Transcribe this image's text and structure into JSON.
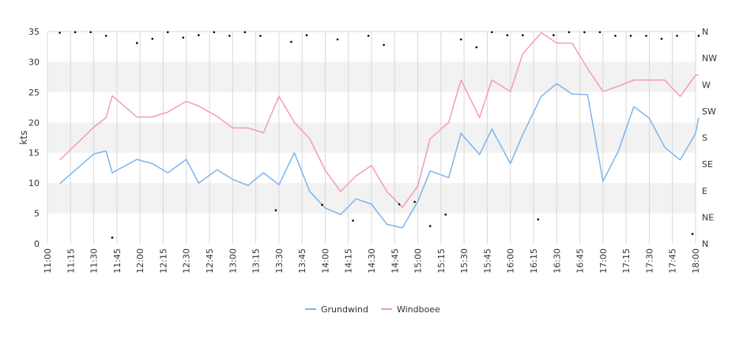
{
  "chart_data": {
    "type": "line",
    "ylabel": "kts",
    "ylim": [
      0,
      35
    ],
    "y_ticks": [
      0,
      5,
      10,
      15,
      20,
      25,
      30,
      35
    ],
    "x_ticks": [
      "11:00",
      "11:15",
      "11:30",
      "11:45",
      "12:00",
      "12:15",
      "12:30",
      "12:45",
      "13:00",
      "13:15",
      "13:30",
      "13:45",
      "14:00",
      "14:15",
      "14:30",
      "14:45",
      "15:00",
      "15:15",
      "15:30",
      "15:45",
      "16:00",
      "16:15",
      "16:30",
      "16:45",
      "17:00",
      "17:15",
      "17:30",
      "17:45",
      "18:00"
    ],
    "xlim_minutes": [
      660,
      1080
    ],
    "direction_axis": [
      "N",
      "NE",
      "E",
      "SE",
      "S",
      "SW",
      "W",
      "NW",
      "N"
    ],
    "grid": true,
    "legend_position": "bottom-center",
    "colors": {
      "grundwind": "#7cb5ec",
      "windboee": "#f49ac1",
      "band": "#f2f2f2",
      "grid": "#d8d8d8",
      "direction_points": "#000000"
    },
    "series": [
      {
        "name": "Grundwind",
        "color": "#7cb5ec",
        "x": [
          "11:08",
          "11:30",
          "11:38",
          "11:42",
          "11:58",
          "12:08",
          "12:18",
          "12:30",
          "12:38",
          "12:50",
          "13:00",
          "13:10",
          "13:20",
          "13:30",
          "13:40",
          "13:50",
          "14:00",
          "14:10",
          "14:20",
          "14:30",
          "14:40",
          "14:50",
          "15:00",
          "15:08",
          "15:20",
          "15:28",
          "15:40",
          "15:48",
          "16:00",
          "16:08",
          "16:20",
          "16:30",
          "16:40",
          "16:50",
          "17:00",
          "17:10",
          "17:20",
          "17:30",
          "17:40",
          "17:50",
          "18:00",
          "18:02"
        ],
        "values": [
          9.9,
          14.8,
          15.3,
          11.7,
          13.9,
          13.2,
          11.7,
          13.9,
          10.0,
          12.2,
          10.6,
          9.6,
          11.7,
          9.7,
          15.0,
          8.6,
          5.9,
          4.8,
          7.4,
          6.5,
          3.2,
          2.6,
          7.0,
          12.0,
          10.9,
          18.2,
          14.7,
          18.9,
          13.2,
          18.0,
          24.3,
          26.4,
          24.7,
          24.6,
          10.3,
          15.3,
          22.6,
          20.7,
          15.9,
          13.8,
          18.2,
          20.8
        ]
      },
      {
        "name": "Windboee",
        "color": "#f49ac1",
        "x": [
          "11:08",
          "11:30",
          "11:38",
          "11:42",
          "11:58",
          "12:08",
          "12:18",
          "12:30",
          "12:38",
          "12:50",
          "13:00",
          "13:10",
          "13:20",
          "13:30",
          "13:40",
          "13:50",
          "14:00",
          "14:10",
          "14:20",
          "14:30",
          "14:40",
          "14:50",
          "15:00",
          "15:08",
          "15:20",
          "15:28",
          "15:40",
          "15:48",
          "16:00",
          "16:08",
          "16:20",
          "16:30",
          "16:40",
          "16:50",
          "17:00",
          "17:10",
          "17:20",
          "17:30",
          "17:40",
          "17:50",
          "18:00",
          "18:02"
        ],
        "values": [
          13.8,
          19.2,
          20.8,
          24.4,
          20.9,
          20.9,
          21.7,
          23.5,
          22.7,
          21.0,
          19.1,
          19.1,
          18.3,
          24.3,
          20.0,
          17.3,
          12.1,
          8.6,
          11.2,
          12.9,
          8.6,
          6.0,
          9.5,
          17.3,
          20.0,
          27.0,
          20.8,
          27.0,
          25.1,
          31.3,
          34.8,
          33.1,
          33.1,
          28.9,
          25.1,
          26.0,
          27.0,
          27.0,
          27.0,
          24.3,
          27.8,
          27.8
        ]
      }
    ],
    "direction_points": {
      "x": [
        "11:08",
        "11:18",
        "11:28",
        "11:38",
        "11:42",
        "11:58",
        "12:08",
        "12:18",
        "12:28",
        "12:38",
        "12:48",
        "12:58",
        "13:08",
        "13:18",
        "13:28",
        "13:38",
        "13:48",
        "13:58",
        "14:08",
        "14:18",
        "14:28",
        "14:38",
        "14:48",
        "14:58",
        "15:08",
        "15:18",
        "15:28",
        "15:38",
        "15:48",
        "15:58",
        "16:08",
        "16:18",
        "16:28",
        "16:38",
        "16:48",
        "16:58",
        "17:08",
        "17:18",
        "17:28",
        "17:38",
        "17:48",
        "17:58",
        "18:02"
      ],
      "values": [
        34.8,
        34.9,
        34.9,
        34.3,
        1.0,
        33.1,
        33.8,
        34.9,
        34.0,
        34.4,
        34.9,
        34.3,
        34.9,
        34.3,
        5.5,
        33.3,
        34.4,
        6.4,
        33.7,
        3.8,
        34.3,
        32.8,
        6.5,
        6.9,
        2.9,
        4.8,
        33.7,
        32.4,
        34.9,
        34.4,
        34.4,
        4.0,
        34.4,
        34.9,
        34.9,
        34.9,
        34.3,
        34.3,
        34.3,
        33.8,
        34.3,
        1.6,
        34.3
      ]
    }
  }
}
